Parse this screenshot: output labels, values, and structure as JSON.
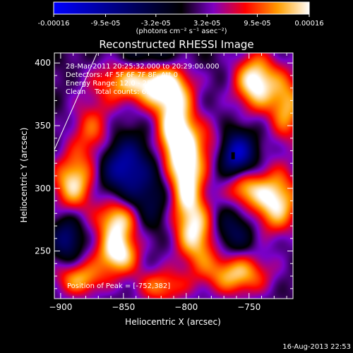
{
  "chart_data": {
    "type": "heatmap",
    "title": "Reconstructed RHESSI Image",
    "xlabel": "Heliocentric X (arcsec)",
    "ylabel": "Heliocentric Y (arcsec)",
    "xlim": [
      -905,
      -715
    ],
    "ylim": [
      212,
      408
    ],
    "x_ticks": [
      -900,
      -850,
      -800,
      -750
    ],
    "y_ticks": [
      250,
      300,
      350,
      400
    ],
    "colorbar": {
      "range": [
        -0.00016,
        0.00016
      ],
      "tick_labels": [
        "-0.00016",
        "-9.5e-05",
        "-3.2e-05",
        "3.2e-05",
        "9.5e-05",
        "0.00016"
      ],
      "tick_values": [
        -0.00016,
        -9.5e-05,
        -3.2e-05,
        3.2e-05,
        9.5e-05,
        0.00016
      ],
      "units": "(photons cm⁻² s⁻¹ asec⁻²)",
      "colormap": [
        "#0000ff",
        "#000000",
        "#7a00c8",
        "#ff0000",
        "#ffa000",
        "#ffffff"
      ]
    },
    "info_lines": [
      "28-Mar-2011 20:25:32.000 to 20:29:00.000",
      "Detectors: 4F 5F 6F 7F 8F, Att 0",
      "Energy Range: 12.0 - 25.0 keV",
      "Clean    Total counts: 6.32E+03"
    ],
    "peak_label": "Position of Peak = [-752,382]",
    "blobs": [
      {
        "x": -845,
        "y": 385,
        "v": 0.75,
        "sx": 20,
        "sy": 12
      },
      {
        "x": -815,
        "y": 380,
        "v": 0.8,
        "sx": 14,
        "sy": 14
      },
      {
        "x": -745,
        "y": 385,
        "v": 1.0,
        "sx": 12,
        "sy": 16
      },
      {
        "x": -720,
        "y": 365,
        "v": 0.7,
        "sx": 10,
        "sy": 20
      },
      {
        "x": -810,
        "y": 345,
        "v": 0.9,
        "sx": 10,
        "sy": 18
      },
      {
        "x": -800,
        "y": 310,
        "v": 1.0,
        "sx": 10,
        "sy": 28
      },
      {
        "x": -790,
        "y": 262,
        "v": 0.8,
        "sx": 12,
        "sy": 18
      },
      {
        "x": -780,
        "y": 335,
        "v": 0.35,
        "sx": 10,
        "sy": 14
      },
      {
        "x": -875,
        "y": 345,
        "v": 0.55,
        "sx": 12,
        "sy": 18
      },
      {
        "x": -890,
        "y": 305,
        "v": 0.85,
        "sx": 12,
        "sy": 16
      },
      {
        "x": -855,
        "y": 275,
        "v": 0.85,
        "sx": 12,
        "sy": 12
      },
      {
        "x": -855,
        "y": 248,
        "v": 0.95,
        "sx": 12,
        "sy": 12
      },
      {
        "x": -885,
        "y": 228,
        "v": 0.7,
        "sx": 14,
        "sy": 10
      },
      {
        "x": -820,
        "y": 222,
        "v": 0.6,
        "sx": 14,
        "sy": 10
      },
      {
        "x": -760,
        "y": 232,
        "v": 0.8,
        "sx": 18,
        "sy": 12
      },
      {
        "x": -730,
        "y": 290,
        "v": 0.95,
        "sx": 14,
        "sy": 18
      },
      {
        "x": -755,
        "y": 300,
        "v": 0.6,
        "sx": 10,
        "sy": 10
      },
      {
        "x": -850,
        "y": 318,
        "v": -0.75,
        "sx": 14,
        "sy": 16
      },
      {
        "x": -760,
        "y": 328,
        "v": -0.9,
        "sx": 10,
        "sy": 12
      },
      {
        "x": -895,
        "y": 260,
        "v": -0.55,
        "sx": 8,
        "sy": 12
      },
      {
        "x": -830,
        "y": 405,
        "v": -0.4,
        "sx": 16,
        "sy": 8
      },
      {
        "x": -765,
        "y": 265,
        "v": -0.45,
        "sx": 14,
        "sy": 14
      },
      {
        "x": -830,
        "y": 290,
        "v": -0.35,
        "sx": 12,
        "sy": 16
      }
    ]
  },
  "footer": {
    "timestamp": "16-Aug-2013 22:53"
  }
}
